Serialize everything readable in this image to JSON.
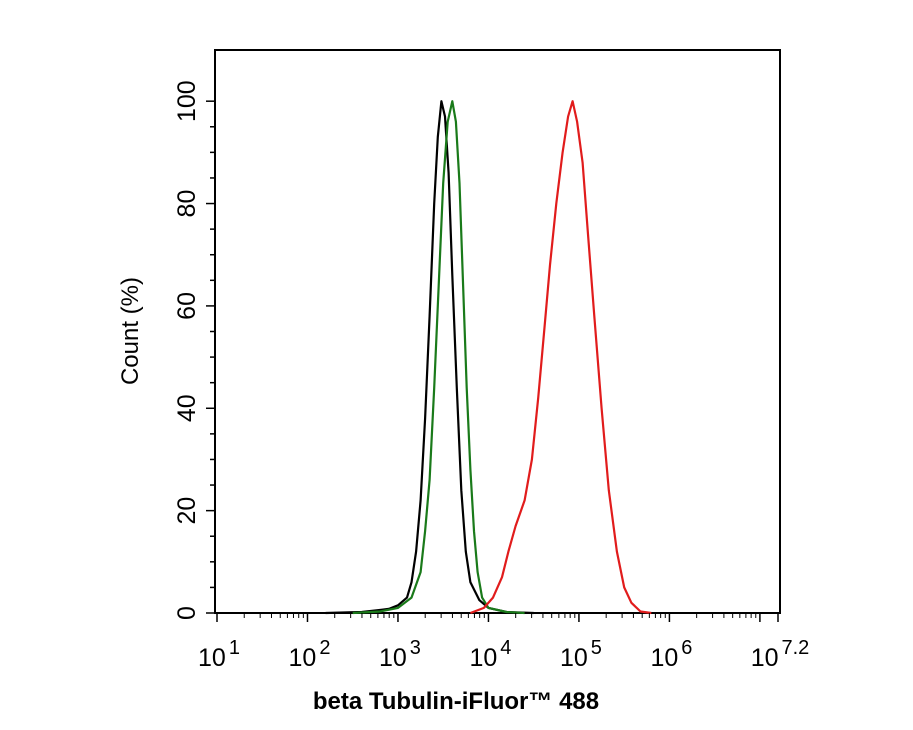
{
  "chart_data": {
    "type": "histogram",
    "title": "",
    "xlabel": "beta Tubulin-iFluor™ 488",
    "ylabel": "Count  (%)",
    "xscale": "log10",
    "xlim_log10": [
      1,
      7.2
    ],
    "ylim": [
      0,
      110
    ],
    "x_ticks": [
      {
        "base": "10",
        "exp": "1",
        "value_log10": 1
      },
      {
        "base": "10",
        "exp": "2",
        "value_log10": 2
      },
      {
        "base": "10",
        "exp": "3",
        "value_log10": 3
      },
      {
        "base": "10",
        "exp": "4",
        "value_log10": 4
      },
      {
        "base": "10",
        "exp": "5",
        "value_log10": 5
      },
      {
        "base": "10",
        "exp": "6",
        "value_log10": 6
      },
      {
        "base": "10",
        "exp": "7.2",
        "value_log10": 7.2
      }
    ],
    "y_ticks": [
      {
        "label": "0",
        "value": 0
      },
      {
        "label": "20",
        "value": 20
      },
      {
        "label": "40",
        "value": 40
      },
      {
        "label": "60",
        "value": 60
      },
      {
        "label": "80",
        "value": 80
      },
      {
        "label": "100",
        "value": 100
      }
    ],
    "grid": false,
    "legend": "none",
    "series": [
      {
        "name": "black",
        "color": "#000000",
        "points_log10x_y": [
          [
            2.2,
            0
          ],
          [
            2.6,
            0.2
          ],
          [
            2.9,
            0.8
          ],
          [
            3.0,
            1.5
          ],
          [
            3.1,
            3
          ],
          [
            3.15,
            6
          ],
          [
            3.2,
            12
          ],
          [
            3.25,
            22
          ],
          [
            3.3,
            38
          ],
          [
            3.35,
            58
          ],
          [
            3.4,
            80
          ],
          [
            3.44,
            93
          ],
          [
            3.48,
            100
          ],
          [
            3.52,
            97
          ],
          [
            3.56,
            86
          ],
          [
            3.6,
            66
          ],
          [
            3.65,
            44
          ],
          [
            3.7,
            24
          ],
          [
            3.75,
            12
          ],
          [
            3.8,
            6
          ],
          [
            3.9,
            2.5
          ],
          [
            4.0,
            1
          ],
          [
            4.2,
            0.2
          ],
          [
            4.5,
            0
          ]
        ]
      },
      {
        "name": "green",
        "color": "#1a7a1a",
        "points_log10x_y": [
          [
            2.5,
            0
          ],
          [
            2.8,
            0.3
          ],
          [
            3.0,
            1
          ],
          [
            3.15,
            3
          ],
          [
            3.25,
            8
          ],
          [
            3.3,
            16
          ],
          [
            3.35,
            26
          ],
          [
            3.4,
            44
          ],
          [
            3.45,
            64
          ],
          [
            3.5,
            84
          ],
          [
            3.55,
            96
          ],
          [
            3.6,
            100
          ],
          [
            3.64,
            96
          ],
          [
            3.68,
            84
          ],
          [
            3.72,
            64
          ],
          [
            3.76,
            44
          ],
          [
            3.8,
            28
          ],
          [
            3.84,
            16
          ],
          [
            3.88,
            8
          ],
          [
            3.93,
            3
          ],
          [
            4.0,
            1
          ],
          [
            4.2,
            0.2
          ],
          [
            4.4,
            0
          ]
        ]
      },
      {
        "name": "red",
        "color": "#e11c1c",
        "points_log10x_y": [
          [
            3.8,
            0
          ],
          [
            3.95,
            1
          ],
          [
            4.05,
            3
          ],
          [
            4.15,
            7
          ],
          [
            4.22,
            12
          ],
          [
            4.3,
            17
          ],
          [
            4.4,
            22
          ],
          [
            4.48,
            30
          ],
          [
            4.55,
            42
          ],
          [
            4.62,
            56
          ],
          [
            4.68,
            68
          ],
          [
            4.75,
            80
          ],
          [
            4.82,
            90
          ],
          [
            4.88,
            97
          ],
          [
            4.93,
            100
          ],
          [
            4.98,
            96
          ],
          [
            5.04,
            88
          ],
          [
            5.1,
            74
          ],
          [
            5.17,
            58
          ],
          [
            5.25,
            40
          ],
          [
            5.33,
            24
          ],
          [
            5.42,
            12
          ],
          [
            5.5,
            5
          ],
          [
            5.58,
            2
          ],
          [
            5.68,
            0.3
          ],
          [
            5.8,
            0
          ]
        ]
      }
    ]
  }
}
